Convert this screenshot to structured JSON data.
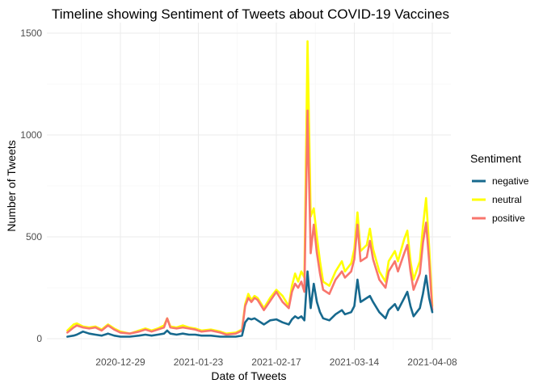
{
  "chart_data": {
    "type": "line",
    "title": "Timeline showing Sentiment of Tweets about COVID-19 Vaccines",
    "xlabel": "Date of Tweets",
    "ylabel": "Number of Tweets",
    "x_ticks": [
      "2020-12-29",
      "2021-01-23",
      "2021-02-17",
      "2021-03-14",
      "2021-04-08"
    ],
    "y_ticks": [
      0,
      500,
      1000,
      1500
    ],
    "xlim": [
      "2020-12-12",
      "2021-04-08"
    ],
    "ylim": [
      0,
      1500
    ],
    "grid": true,
    "legend": {
      "title": "Sentiment",
      "position": "right"
    },
    "series": [
      {
        "name": "neutral",
        "color": "#FFFF00",
        "points": [
          [
            "2020-12-12",
            40
          ],
          [
            "2020-12-14",
            70
          ],
          [
            "2020-12-15",
            75
          ],
          [
            "2020-12-17",
            60
          ],
          [
            "2020-12-19",
            55
          ],
          [
            "2020-12-21",
            60
          ],
          [
            "2020-12-23",
            45
          ],
          [
            "2020-12-25",
            70
          ],
          [
            "2020-12-27",
            50
          ],
          [
            "2020-12-29",
            35
          ],
          [
            "2021-01-01",
            25
          ],
          [
            "2021-01-04",
            40
          ],
          [
            "2021-01-06",
            50
          ],
          [
            "2021-01-08",
            40
          ],
          [
            "2021-01-10",
            50
          ],
          [
            "2021-01-12",
            65
          ],
          [
            "2021-01-13",
            100
          ],
          [
            "2021-01-14",
            60
          ],
          [
            "2021-01-16",
            55
          ],
          [
            "2021-01-18",
            65
          ],
          [
            "2021-01-20",
            55
          ],
          [
            "2021-01-22",
            50
          ],
          [
            "2021-01-24",
            40
          ],
          [
            "2021-01-27",
            45
          ],
          [
            "2021-01-30",
            35
          ],
          [
            "2021-02-01",
            25
          ],
          [
            "2021-02-04",
            30
          ],
          [
            "2021-02-06",
            45
          ],
          [
            "2021-02-07",
            170
          ],
          [
            "2021-02-08",
            220
          ],
          [
            "2021-02-09",
            190
          ],
          [
            "2021-02-10",
            210
          ],
          [
            "2021-02-11",
            200
          ],
          [
            "2021-02-13",
            150
          ],
          [
            "2021-02-15",
            200
          ],
          [
            "2021-02-17",
            240
          ],
          [
            "2021-02-19",
            210
          ],
          [
            "2021-02-21",
            160
          ],
          [
            "2021-02-22",
            260
          ],
          [
            "2021-02-23",
            320
          ],
          [
            "2021-02-24",
            280
          ],
          [
            "2021-02-25",
            330
          ],
          [
            "2021-02-26",
            300
          ],
          [
            "2021-02-27",
            1460
          ],
          [
            "2021-02-28",
            600
          ],
          [
            "2021-03-01",
            640
          ],
          [
            "2021-03-02",
            500
          ],
          [
            "2021-03-03",
            380
          ],
          [
            "2021-03-04",
            280
          ],
          [
            "2021-03-06",
            260
          ],
          [
            "2021-03-08",
            330
          ],
          [
            "2021-03-10",
            380
          ],
          [
            "2021-03-11",
            330
          ],
          [
            "2021-03-13",
            370
          ],
          [
            "2021-03-14",
            440
          ],
          [
            "2021-03-15",
            620
          ],
          [
            "2021-03-16",
            430
          ],
          [
            "2021-03-18",
            460
          ],
          [
            "2021-03-19",
            540
          ],
          [
            "2021-03-20",
            440
          ],
          [
            "2021-03-22",
            330
          ],
          [
            "2021-03-24",
            280
          ],
          [
            "2021-03-25",
            380
          ],
          [
            "2021-03-27",
            430
          ],
          [
            "2021-03-28",
            380
          ],
          [
            "2021-03-30",
            490
          ],
          [
            "2021-03-31",
            530
          ],
          [
            "2021-04-01",
            380
          ],
          [
            "2021-04-02",
            290
          ],
          [
            "2021-04-04",
            380
          ],
          [
            "2021-04-05",
            550
          ],
          [
            "2021-04-06",
            690
          ],
          [
            "2021-04-07",
            450
          ],
          [
            "2021-04-08",
            160
          ]
        ]
      },
      {
        "name": "positive",
        "color": "#F8766D",
        "points": [
          [
            "2020-12-12",
            30
          ],
          [
            "2020-12-14",
            55
          ],
          [
            "2020-12-15",
            65
          ],
          [
            "2020-12-17",
            55
          ],
          [
            "2020-12-19",
            50
          ],
          [
            "2020-12-21",
            55
          ],
          [
            "2020-12-23",
            40
          ],
          [
            "2020-12-25",
            65
          ],
          [
            "2020-12-27",
            45
          ],
          [
            "2020-12-29",
            30
          ],
          [
            "2021-01-01",
            25
          ],
          [
            "2021-01-04",
            35
          ],
          [
            "2021-01-06",
            45
          ],
          [
            "2021-01-08",
            35
          ],
          [
            "2021-01-10",
            45
          ],
          [
            "2021-01-12",
            55
          ],
          [
            "2021-01-13",
            100
          ],
          [
            "2021-01-14",
            55
          ],
          [
            "2021-01-16",
            50
          ],
          [
            "2021-01-18",
            55
          ],
          [
            "2021-01-20",
            50
          ],
          [
            "2021-01-22",
            45
          ],
          [
            "2021-01-24",
            35
          ],
          [
            "2021-01-27",
            40
          ],
          [
            "2021-01-30",
            30
          ],
          [
            "2021-02-01",
            20
          ],
          [
            "2021-02-04",
            25
          ],
          [
            "2021-02-06",
            40
          ],
          [
            "2021-02-07",
            160
          ],
          [
            "2021-02-08",
            200
          ],
          [
            "2021-02-09",
            180
          ],
          [
            "2021-02-10",
            200
          ],
          [
            "2021-02-11",
            190
          ],
          [
            "2021-02-13",
            140
          ],
          [
            "2021-02-15",
            185
          ],
          [
            "2021-02-17",
            230
          ],
          [
            "2021-02-19",
            180
          ],
          [
            "2021-02-21",
            150
          ],
          [
            "2021-02-22",
            230
          ],
          [
            "2021-02-23",
            270
          ],
          [
            "2021-02-24",
            250
          ],
          [
            "2021-02-25",
            280
          ],
          [
            "2021-02-26",
            230
          ],
          [
            "2021-02-27",
            1120
          ],
          [
            "2021-02-28",
            420
          ],
          [
            "2021-03-01",
            560
          ],
          [
            "2021-03-02",
            420
          ],
          [
            "2021-03-03",
            320
          ],
          [
            "2021-03-04",
            240
          ],
          [
            "2021-03-06",
            220
          ],
          [
            "2021-03-08",
            290
          ],
          [
            "2021-03-10",
            330
          ],
          [
            "2021-03-11",
            300
          ],
          [
            "2021-03-13",
            330
          ],
          [
            "2021-03-14",
            390
          ],
          [
            "2021-03-15",
            560
          ],
          [
            "2021-03-16",
            380
          ],
          [
            "2021-03-18",
            400
          ],
          [
            "2021-03-19",
            480
          ],
          [
            "2021-03-20",
            390
          ],
          [
            "2021-03-22",
            290
          ],
          [
            "2021-03-24",
            250
          ],
          [
            "2021-03-25",
            330
          ],
          [
            "2021-03-27",
            380
          ],
          [
            "2021-03-28",
            330
          ],
          [
            "2021-03-30",
            420
          ],
          [
            "2021-03-31",
            460
          ],
          [
            "2021-04-01",
            330
          ],
          [
            "2021-04-02",
            240
          ],
          [
            "2021-04-04",
            320
          ],
          [
            "2021-04-05",
            470
          ],
          [
            "2021-04-06",
            570
          ],
          [
            "2021-04-07",
            380
          ],
          [
            "2021-04-08",
            140
          ]
        ]
      },
      {
        "name": "negative",
        "color": "#17698E",
        "points": [
          [
            "2020-12-12",
            10
          ],
          [
            "2020-12-14",
            15
          ],
          [
            "2020-12-15",
            20
          ],
          [
            "2020-12-17",
            35
          ],
          [
            "2020-12-19",
            25
          ],
          [
            "2020-12-21",
            20
          ],
          [
            "2020-12-23",
            15
          ],
          [
            "2020-12-25",
            25
          ],
          [
            "2020-12-27",
            15
          ],
          [
            "2020-12-29",
            10
          ],
          [
            "2021-01-01",
            10
          ],
          [
            "2021-01-04",
            15
          ],
          [
            "2021-01-06",
            20
          ],
          [
            "2021-01-08",
            15
          ],
          [
            "2021-01-10",
            20
          ],
          [
            "2021-01-12",
            25
          ],
          [
            "2021-01-13",
            40
          ],
          [
            "2021-01-14",
            25
          ],
          [
            "2021-01-16",
            20
          ],
          [
            "2021-01-18",
            25
          ],
          [
            "2021-01-20",
            20
          ],
          [
            "2021-01-22",
            20
          ],
          [
            "2021-01-24",
            15
          ],
          [
            "2021-01-27",
            15
          ],
          [
            "2021-01-30",
            10
          ],
          [
            "2021-02-01",
            10
          ],
          [
            "2021-02-04",
            10
          ],
          [
            "2021-02-06",
            15
          ],
          [
            "2021-02-07",
            80
          ],
          [
            "2021-02-08",
            100
          ],
          [
            "2021-02-09",
            95
          ],
          [
            "2021-02-10",
            100
          ],
          [
            "2021-02-11",
            90
          ],
          [
            "2021-02-13",
            70
          ],
          [
            "2021-02-15",
            90
          ],
          [
            "2021-02-17",
            95
          ],
          [
            "2021-02-19",
            80
          ],
          [
            "2021-02-21",
            70
          ],
          [
            "2021-02-22",
            95
          ],
          [
            "2021-02-23",
            110
          ],
          [
            "2021-02-24",
            100
          ],
          [
            "2021-02-25",
            110
          ],
          [
            "2021-02-26",
            90
          ],
          [
            "2021-02-27",
            330
          ],
          [
            "2021-02-28",
            150
          ],
          [
            "2021-03-01",
            270
          ],
          [
            "2021-03-02",
            180
          ],
          [
            "2021-03-03",
            130
          ],
          [
            "2021-03-04",
            100
          ],
          [
            "2021-03-06",
            90
          ],
          [
            "2021-03-08",
            120
          ],
          [
            "2021-03-10",
            140
          ],
          [
            "2021-03-11",
            120
          ],
          [
            "2021-03-13",
            130
          ],
          [
            "2021-03-14",
            160
          ],
          [
            "2021-03-15",
            290
          ],
          [
            "2021-03-16",
            180
          ],
          [
            "2021-03-18",
            200
          ],
          [
            "2021-03-19",
            210
          ],
          [
            "2021-03-20",
            180
          ],
          [
            "2021-03-22",
            130
          ],
          [
            "2021-03-24",
            100
          ],
          [
            "2021-03-25",
            140
          ],
          [
            "2021-03-27",
            170
          ],
          [
            "2021-03-28",
            140
          ],
          [
            "2021-03-30",
            200
          ],
          [
            "2021-03-31",
            230
          ],
          [
            "2021-04-01",
            160
          ],
          [
            "2021-04-02",
            110
          ],
          [
            "2021-04-04",
            150
          ],
          [
            "2021-04-05",
            220
          ],
          [
            "2021-04-06",
            310
          ],
          [
            "2021-04-07",
            200
          ],
          [
            "2021-04-08",
            130
          ]
        ]
      }
    ],
    "legend_order": [
      "negative",
      "neutral",
      "positive"
    ]
  }
}
